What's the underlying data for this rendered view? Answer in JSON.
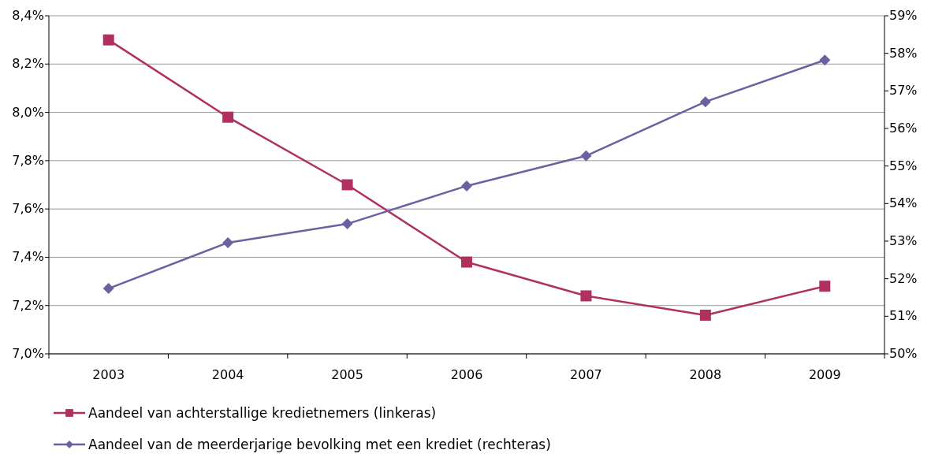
{
  "chart_data": {
    "type": "line",
    "categories": [
      "2003",
      "2004",
      "2005",
      "2006",
      "2007",
      "2008",
      "2009"
    ],
    "series": [
      {
        "name": "Aandeel van achterstallige kredietnemers (linkeras)",
        "color": "#b03060",
        "marker": "square",
        "values": [
          8.3,
          7.98,
          7.7,
          7.38,
          7.24,
          7.16,
          7.28
        ]
      },
      {
        "name": "Aandeel van de meerderjarige bevolking met een krediet (rechteras)",
        "color": "#6a62a0",
        "marker": "diamond",
        "axis": "y2",
        "values": [
          51.74,
          52.96,
          53.46,
          54.47,
          55.27,
          56.71,
          57.82
        ]
      }
    ],
    "ylim": [
      7.0,
      8.4
    ],
    "yticks": [
      {
        "value": 7.0,
        "label": "7,0%"
      },
      {
        "value": 7.2,
        "label": "7,2%"
      },
      {
        "value": 7.4,
        "label": "7,4%"
      },
      {
        "value": 7.6,
        "label": "7,6%"
      },
      {
        "value": 7.8,
        "label": "7,8%"
      },
      {
        "value": 8.0,
        "label": "8,0%"
      },
      {
        "value": 8.2,
        "label": "8,2%"
      },
      {
        "value": 8.4,
        "label": "8,4%"
      }
    ],
    "y2lim": [
      50,
      59
    ],
    "y2ticks": [
      {
        "value": 50,
        "label": "50%"
      },
      {
        "value": 51,
        "label": "51%"
      },
      {
        "value": 52,
        "label": "52%"
      },
      {
        "value": 53,
        "label": "53%"
      },
      {
        "value": 54,
        "label": "54%"
      },
      {
        "value": 55,
        "label": "55%"
      },
      {
        "value": 56,
        "label": "56%"
      },
      {
        "value": 57,
        "label": "57%"
      },
      {
        "value": 58,
        "label": "58%"
      },
      {
        "value": 59,
        "label": "59%"
      }
    ],
    "grid": "y",
    "legend": "bottom",
    "line_style": "solid"
  }
}
